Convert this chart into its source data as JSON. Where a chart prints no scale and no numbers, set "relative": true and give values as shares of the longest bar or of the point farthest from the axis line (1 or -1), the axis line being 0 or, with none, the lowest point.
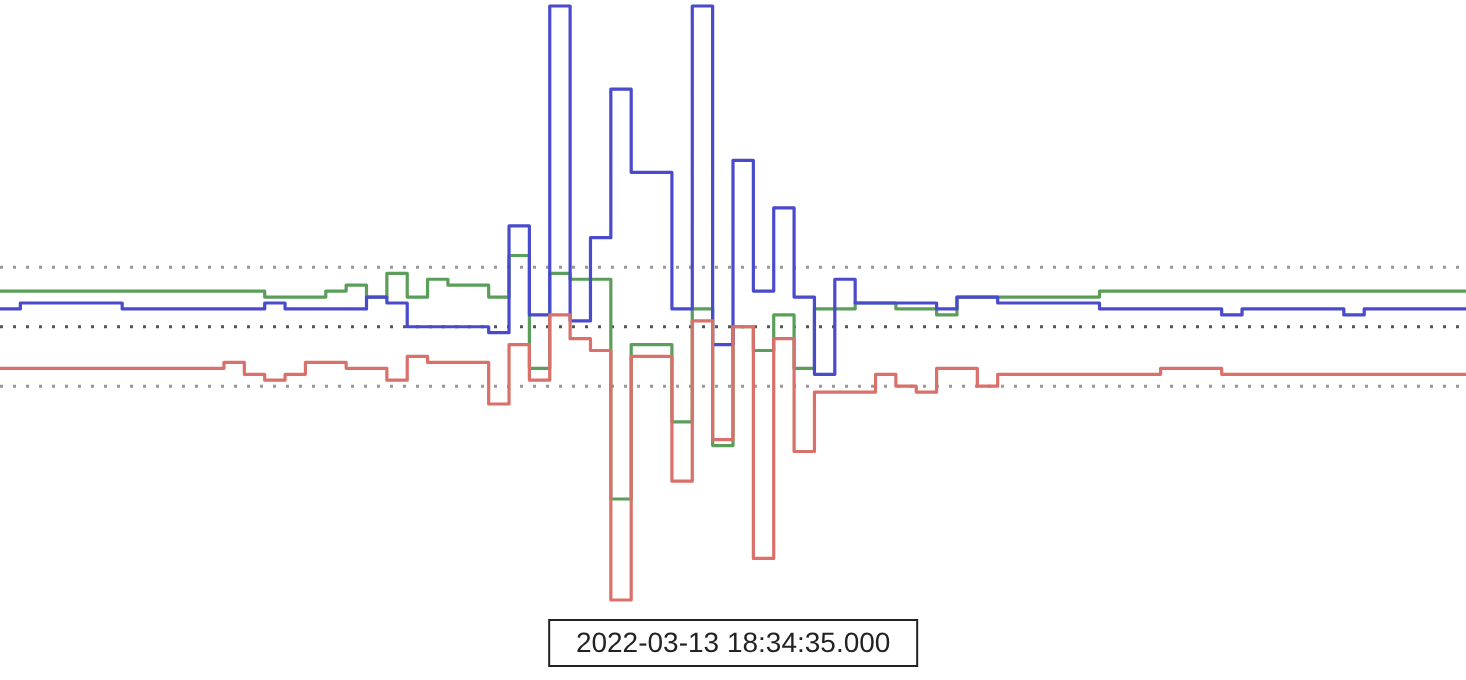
{
  "chart_data": {
    "type": "step",
    "relative": true,
    "categories": [
      null,
      null,
      null,
      null,
      null,
      null,
      null,
      null,
      null,
      null,
      null,
      null,
      null,
      null,
      null,
      null,
      null,
      null,
      null,
      null,
      null,
      null,
      null,
      null,
      null,
      null,
      null,
      null,
      null,
      null,
      null,
      null,
      null,
      null,
      null,
      null,
      null,
      null,
      null,
      null,
      null,
      null,
      null,
      null,
      null,
      null,
      null,
      null,
      null,
      null,
      null,
      null,
      null,
      null,
      null,
      null,
      null,
      null,
      null,
      null,
      null,
      null,
      null,
      null,
      null,
      null,
      null,
      null,
      null,
      null,
      null,
      null,
      null
    ],
    "series": [
      {
        "color": "#5a9e5a",
        "values": [
          0.52,
          0.52,
          0.52,
          0.52,
          0.52,
          0.52,
          0.52,
          0.52,
          0.52,
          0.52,
          0.52,
          0.52,
          0.52,
          0.51,
          0.51,
          0.51,
          0.52,
          0.53,
          0.51,
          0.55,
          0.51,
          0.54,
          0.53,
          0.53,
          0.51,
          0.58,
          0.39,
          0.55,
          0.54,
          0.54,
          0.17,
          0.43,
          0.43,
          0.3,
          0.49,
          0.26,
          0.46,
          0.42,
          0.48,
          0.39,
          0.49,
          0.49,
          0.5,
          0.5,
          0.49,
          0.49,
          0.48,
          0.51,
          0.51,
          0.51,
          0.51,
          0.51,
          0.51,
          0.51,
          0.52,
          0.52,
          0.52,
          0.52,
          0.52,
          0.52,
          0.52,
          0.52,
          0.52,
          0.52,
          0.52,
          0.52,
          0.52,
          0.52,
          0.52,
          0.52,
          0.52,
          0.52,
          0.52
        ]
      },
      {
        "color": "#4a4acc",
        "values": [
          0.49,
          0.5,
          0.5,
          0.5,
          0.5,
          0.5,
          0.49,
          0.49,
          0.49,
          0.49,
          0.49,
          0.49,
          0.49,
          0.5,
          0.49,
          0.49,
          0.49,
          0.49,
          0.51,
          0.5,
          0.46,
          0.46,
          0.46,
          0.46,
          0.45,
          0.63,
          0.48,
          1,
          0.47,
          0.61,
          0.86,
          0.72,
          0.72,
          0.49,
          1,
          0.43,
          0.74,
          0.52,
          0.66,
          0.51,
          0.38,
          0.54,
          0.5,
          0.5,
          0.5,
          0.5,
          0.49,
          0.51,
          0.51,
          0.5,
          0.5,
          0.5,
          0.5,
          0.5,
          0.49,
          0.49,
          0.49,
          0.49,
          0.49,
          0.49,
          0.48,
          0.49,
          0.49,
          0.49,
          0.49,
          0.49,
          0.48,
          0.49,
          0.49,
          0.49,
          0.49,
          0.49,
          0.49
        ]
      },
      {
        "color": "#d9706a",
        "values": [
          0.39,
          0.39,
          0.39,
          0.39,
          0.39,
          0.39,
          0.39,
          0.39,
          0.39,
          0.39,
          0.39,
          0.4,
          0.38,
          0.37,
          0.38,
          0.4,
          0.4,
          0.39,
          0.39,
          0.37,
          0.41,
          0.4,
          0.4,
          0.4,
          0.33,
          0.43,
          0.37,
          0.48,
          0.44,
          0.42,
          0,
          0.41,
          0.41,
          0.2,
          0.47,
          0.27,
          0.46,
          0.07,
          0.44,
          0.25,
          0.35,
          0.35,
          0.35,
          0.38,
          0.36,
          0.35,
          0.39,
          0.39,
          0.36,
          0.38,
          0.38,
          0.38,
          0.38,
          0.38,
          0.38,
          0.38,
          0.38,
          0.39,
          0.39,
          0.39,
          0.38,
          0.38,
          0.38,
          0.38,
          0.38,
          0.38,
          0.38,
          0.38,
          0.38,
          0.38,
          0.38,
          0.38,
          0.38
        ]
      }
    ],
    "ref_lines": [
      {
        "axis": "y",
        "value": 0.56,
        "color": "#999999",
        "line_style": "dotted"
      },
      {
        "axis": "y",
        "value": 0.46,
        "color": "#555555",
        "line_style": "dotted"
      },
      {
        "axis": "y",
        "value": 0.36,
        "color": "#999999",
        "line_style": "dotted"
      }
    ],
    "annotations": [
      "2022-03-13 18:34:35.000"
    ]
  }
}
